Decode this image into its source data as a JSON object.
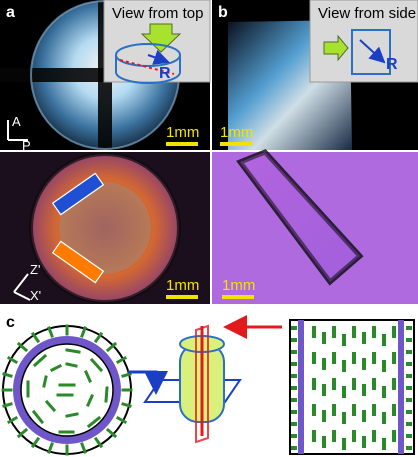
{
  "figure": {
    "labels": {
      "a": "a",
      "b": "b",
      "c": "c"
    },
    "insets": {
      "top_view": "View from top",
      "side_view": "View from side",
      "radius_label": "R"
    },
    "scale_bars": [
      "1mm",
      "1mm",
      "1mm",
      "1mm"
    ],
    "axes": {
      "analyzer": "A",
      "polarizer": "P",
      "z_prime": "Z'",
      "x_prime": "X'"
    },
    "colors": {
      "insets_bg": "#d9d9d9",
      "scale_bar": "#f2e200",
      "rod_green": "#2a8a2a",
      "ring_purple": "#6f57c9",
      "cylinder_fill": "#d9f07a",
      "arrow_blue": "#1a3fc4",
      "arrow_red": "#e11b1b"
    }
  }
}
